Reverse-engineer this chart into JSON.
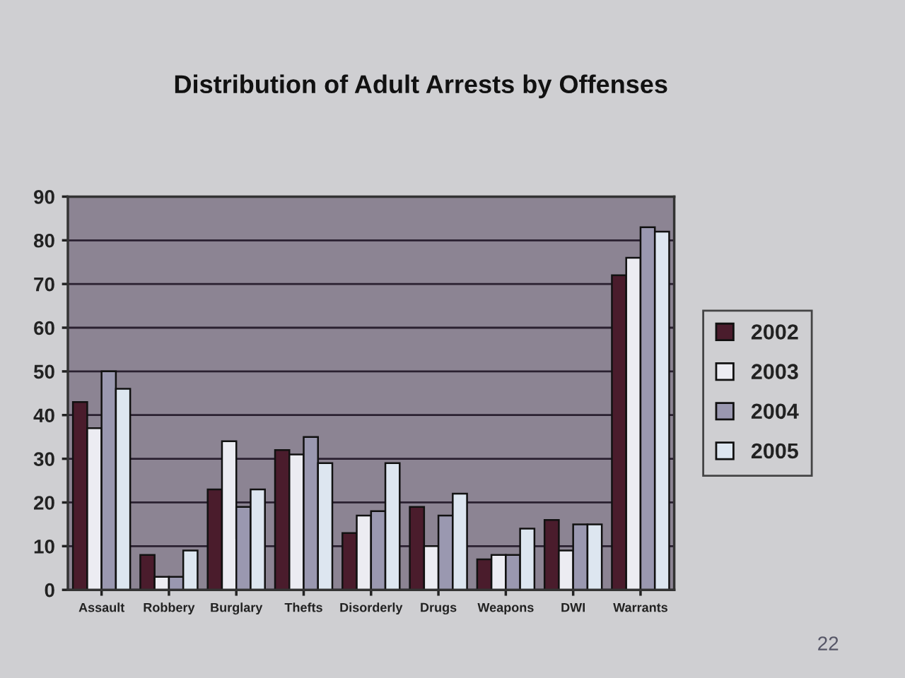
{
  "chart_data": {
    "type": "bar",
    "title": "Distribution of Adult Arrests by Offenses",
    "categories": [
      "Assault",
      "Robbery",
      "Burglary",
      "Thefts",
      "Disorderly",
      "Drugs",
      "Weapons",
      "DWI",
      "Warrants"
    ],
    "series": [
      {
        "name": "2002",
        "color": "#4a1c2c",
        "values": [
          43,
          8,
          23,
          32,
          13,
          19,
          7,
          16,
          72
        ]
      },
      {
        "name": "2003",
        "color": "#ececf2",
        "values": [
          37,
          3,
          34,
          31,
          17,
          10,
          8,
          9,
          76
        ]
      },
      {
        "name": "2004",
        "color": "#9a98b0",
        "values": [
          50,
          3,
          19,
          35,
          18,
          17,
          8,
          15,
          83
        ]
      },
      {
        "name": "2005",
        "color": "#dde6f0",
        "values": [
          46,
          9,
          23,
          29,
          29,
          22,
          14,
          15,
          82
        ]
      }
    ],
    "ylim": [
      0,
      90
    ],
    "yticks": [
      0,
      10,
      20,
      30,
      40,
      50,
      60,
      70,
      80,
      90
    ],
    "grid": "y",
    "legend": "right",
    "annotations": [
      "22"
    ]
  }
}
